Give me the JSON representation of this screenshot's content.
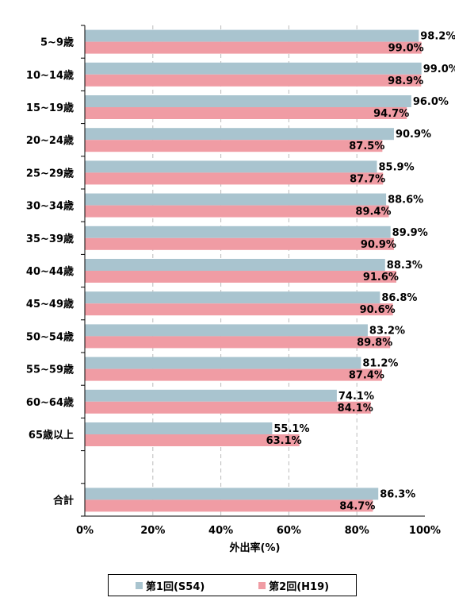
{
  "chart_data": {
    "type": "bar",
    "orientation": "horizontal",
    "categories": [
      "5~9歳",
      "10~14歳",
      "15~19歳",
      "20~24歳",
      "25~29歳",
      "30~34歳",
      "35~39歳",
      "40~44歳",
      "45~49歳",
      "50~54歳",
      "55~59歳",
      "60~64歳",
      "65歳以上",
      "",
      "合計"
    ],
    "series": [
      {
        "name": "第1回(S54)",
        "color": "#a9c4cf",
        "values": [
          98.2,
          99.0,
          96.0,
          90.9,
          85.9,
          88.6,
          89.9,
          88.3,
          86.8,
          83.2,
          81.2,
          74.1,
          55.1,
          null,
          86.3
        ],
        "labels": [
          "98.2%",
          "99.0%",
          "96.0%",
          "90.9%",
          "85.9%",
          "88.6%",
          "89.9%",
          "88.3%",
          "86.8%",
          "83.2%",
          "81.2%",
          "74.1%",
          "55.1%",
          "",
          "86.3%"
        ]
      },
      {
        "name": "第2回(H19)",
        "color": "#f09ca4",
        "values": [
          99.0,
          98.9,
          94.7,
          87.5,
          87.7,
          89.4,
          90.9,
          91.6,
          90.6,
          89.8,
          87.4,
          84.1,
          63.1,
          null,
          84.7
        ],
        "labels": [
          "99.0%",
          "98.9%",
          "94.7%",
          "87.5%",
          "87.7%",
          "89.4%",
          "90.9%",
          "91.6%",
          "90.6%",
          "89.8%",
          "87.4%",
          "84.1%",
          "63.1%",
          "",
          "84.7%"
        ]
      }
    ],
    "xlim": [
      0,
      100
    ],
    "xticks": [
      "0%",
      "20%",
      "40%",
      "60%",
      "80%",
      "100%"
    ],
    "xlabel": "外出率(%)",
    "grid": "vertical dashed",
    "legend_position": "bottom"
  }
}
